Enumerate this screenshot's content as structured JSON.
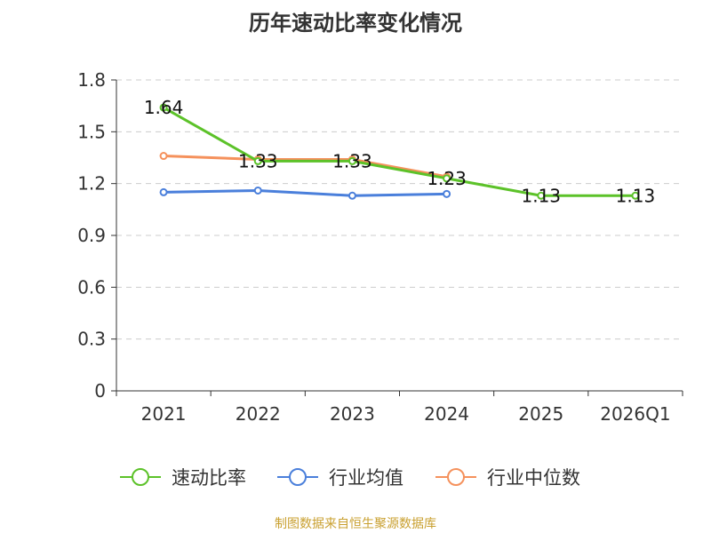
{
  "chart_data": {
    "type": "line",
    "title": "历年速动比率变化情况",
    "categories": [
      "2021",
      "2022",
      "2023",
      "2024",
      "2025",
      "2026Q1"
    ],
    "ylim": [
      0,
      1.8
    ],
    "yticks": [
      "0",
      "0.3",
      "0.6",
      "0.9",
      "1.2",
      "1.5",
      "1.8"
    ],
    "grid": true,
    "legend_position": "bottom",
    "series": [
      {
        "name": "速动比率",
        "color": "#5cc229",
        "values": [
          1.64,
          1.33,
          1.33,
          1.23,
          1.13,
          1.13
        ],
        "labels": [
          "1.64",
          "1.33",
          "1.33",
          "1.23",
          "1.13",
          "1.13"
        ]
      },
      {
        "name": "行业均值",
        "color": "#4a7fdb",
        "values": [
          1.15,
          1.16,
          1.13,
          1.14,
          null,
          null
        ]
      },
      {
        "name": "行业中位数",
        "color": "#f5915c",
        "values": [
          1.36,
          1.34,
          1.34,
          1.24,
          null,
          null
        ]
      }
    ]
  },
  "footer": {
    "source": "制图数据来自恒生聚源数据库"
  }
}
